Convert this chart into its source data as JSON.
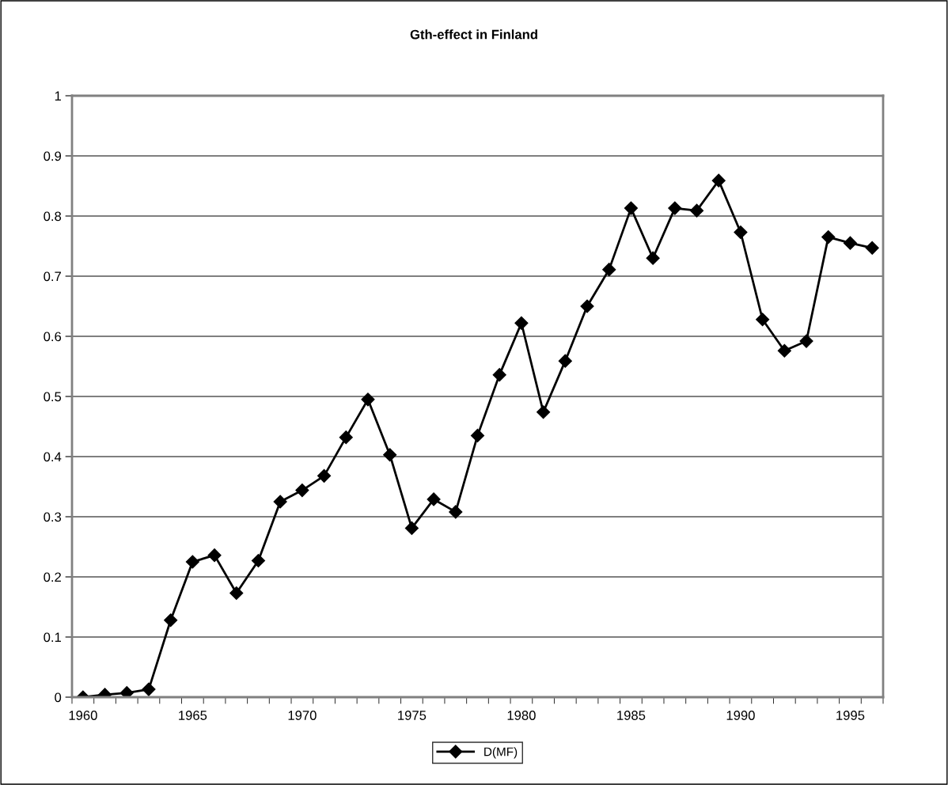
{
  "chart_data": {
    "type": "line",
    "title": "Gth-effect in Finland",
    "categories": [
      "1960",
      null,
      null,
      null,
      null,
      "1965",
      null,
      null,
      null,
      null,
      "1970",
      null,
      null,
      null,
      null,
      "1975",
      null,
      null,
      null,
      null,
      "1980",
      null,
      null,
      null,
      null,
      "1985",
      null,
      null,
      null,
      null,
      "1990",
      null,
      null,
      null,
      null,
      "1995",
      null
    ],
    "series": [
      {
        "name": "D(MF)",
        "color": "#000000",
        "values": [
          0,
          0.004,
          0.007,
          0.013,
          0.128,
          0.225,
          0.236,
          0.173,
          0.227,
          0.325,
          0.344,
          0.368,
          0.432,
          0.495,
          0.403,
          0.281,
          0.329,
          0.308,
          0.435,
          0.536,
          0.622,
          0.474,
          0.559,
          0.65,
          0.711,
          0.813,
          0.73,
          0.813,
          0.809,
          0.859,
          0.773,
          0.628,
          0.576,
          0.592,
          0.765,
          0.755,
          0.747
        ]
      }
    ],
    "ylim": [
      0,
      1
    ],
    "yticks": [
      0,
      0.1,
      0.2,
      0.3,
      0.4,
      0.5,
      0.6,
      0.7,
      0.8,
      0.9,
      1
    ],
    "grid": "y",
    "legend": "bottom",
    "marker": "diamond",
    "line_style": "solid"
  }
}
